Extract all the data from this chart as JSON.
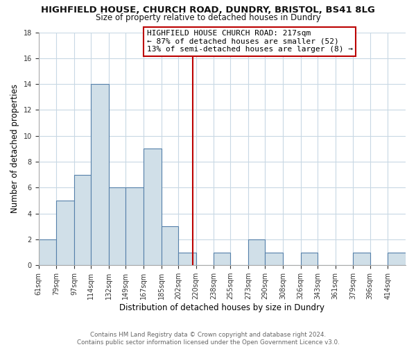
{
  "title": "HIGHFIELD HOUSE, CHURCH ROAD, DUNDRY, BRISTOL, BS41 8LG",
  "subtitle": "Size of property relative to detached houses in Dundry",
  "xlabel": "Distribution of detached houses by size in Dundry",
  "ylabel": "Number of detached properties",
  "bar_color": "#d0dfe8",
  "bar_edge_color": "#5580aa",
  "bin_edges": [
    61,
    79,
    97,
    114,
    132,
    149,
    167,
    185,
    202,
    220,
    238,
    255,
    273,
    290,
    308,
    326,
    343,
    361,
    379,
    396,
    414,
    432
  ],
  "bar_heights": [
    2,
    5,
    7,
    14,
    6,
    6,
    9,
    3,
    1,
    0,
    1,
    0,
    2,
    1,
    0,
    1,
    0,
    0,
    1,
    0,
    1
  ],
  "tick_labels": [
    "61sqm",
    "79sqm",
    "97sqm",
    "114sqm",
    "132sqm",
    "149sqm",
    "167sqm",
    "185sqm",
    "202sqm",
    "220sqm",
    "238sqm",
    "255sqm",
    "273sqm",
    "290sqm",
    "308sqm",
    "326sqm",
    "343sqm",
    "361sqm",
    "379sqm",
    "396sqm",
    "414sqm"
  ],
  "vline_x": 217,
  "vline_color": "#bb0000",
  "annotation_line1": "HIGHFIELD HOUSE CHURCH ROAD: 217sqm",
  "annotation_line2": "← 87% of detached houses are smaller (52)",
  "annotation_line3": "13% of semi-detached houses are larger (8) →",
  "ylim": [
    0,
    18
  ],
  "yticks": [
    0,
    2,
    4,
    6,
    8,
    10,
    12,
    14,
    16,
    18
  ],
  "footer_text": "Contains HM Land Registry data © Crown copyright and database right 2024.\nContains public sector information licensed under the Open Government Licence v3.0.",
  "background_color": "#ffffff",
  "grid_color": "#c8d8e4"
}
